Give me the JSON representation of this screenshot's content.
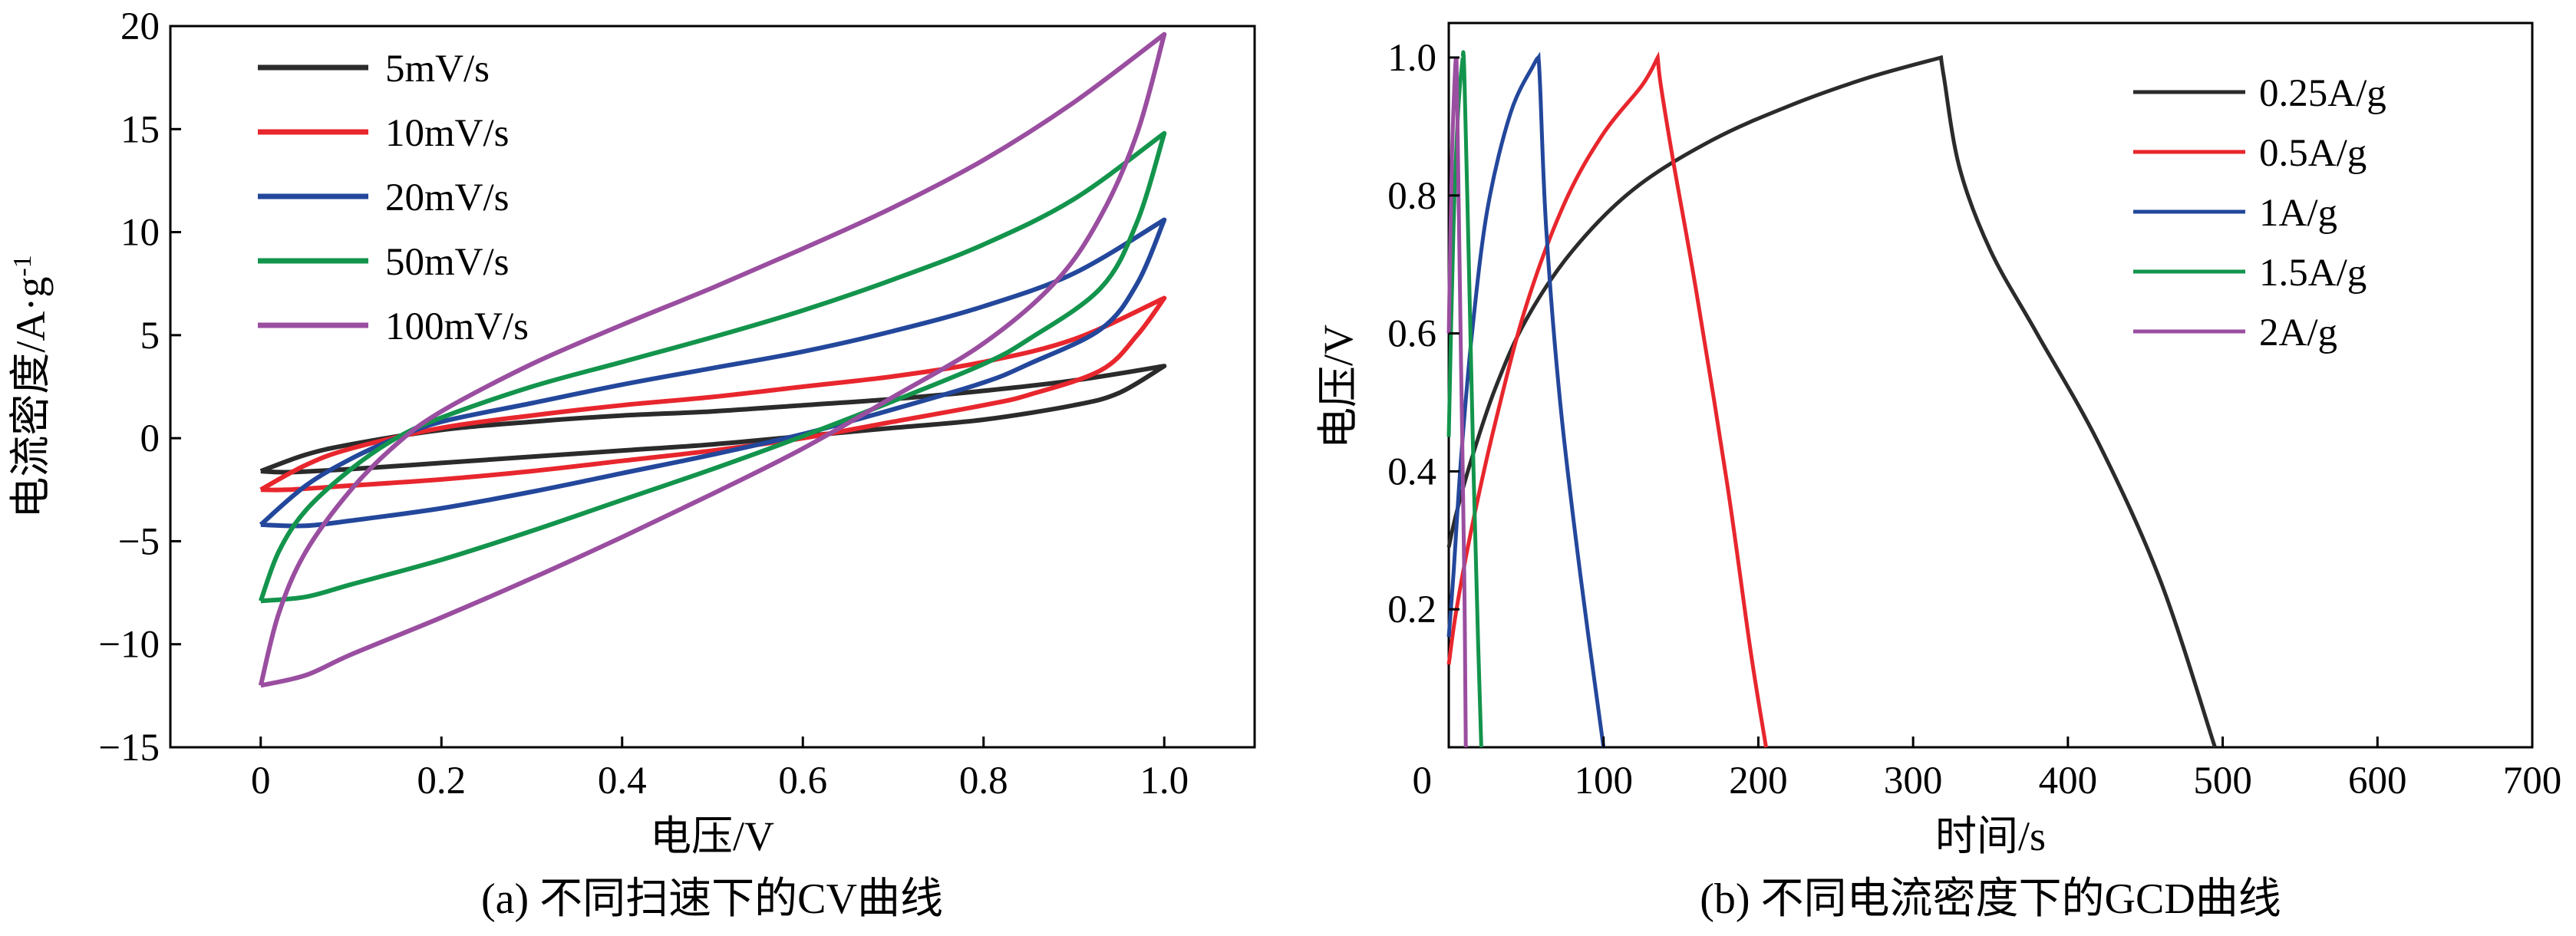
{
  "chart_data": [
    {
      "id": "cv",
      "type": "line",
      "caption": "(a) 不同扫速下的CV曲线",
      "xlabel": "电压/V",
      "ylabel": "电流密度/A·g⁻¹",
      "ylabel_main": "电流密度/A·g",
      "ylabel_sup": "-1",
      "xlim": [
        -0.1,
        1.1
      ],
      "ylim": [
        -15,
        20
      ],
      "xticks": [
        0,
        0.2,
        0.4,
        0.6,
        0.8,
        1.0
      ],
      "xtick_labels": [
        "0",
        "0.2",
        "0.4",
        "0.6",
        "0.8",
        "1.0"
      ],
      "yticks": [
        -15,
        -10,
        -5,
        0,
        5,
        10,
        15,
        20
      ],
      "ytick_labels": [
        "−15",
        "−10",
        "−5",
        "0",
        "5",
        "10",
        "15",
        "20"
      ],
      "legend_position": "top-left",
      "series": [
        {
          "name": "5mV/s",
          "color": "#2b2b2b",
          "upper": [
            [
              0,
              -1.6
            ],
            [
              0.05,
              -0.8
            ],
            [
              0.1,
              -0.3
            ],
            [
              0.2,
              0.4
            ],
            [
              0.3,
              0.8
            ],
            [
              0.4,
              1.1
            ],
            [
              0.5,
              1.3
            ],
            [
              0.6,
              1.6
            ],
            [
              0.7,
              1.9
            ],
            [
              0.8,
              2.3
            ],
            [
              0.9,
              2.8
            ],
            [
              1.0,
              3.5
            ]
          ],
          "lower": [
            [
              1.0,
              3.5
            ],
            [
              0.95,
              2.2
            ],
            [
              0.9,
              1.6
            ],
            [
              0.8,
              0.9
            ],
            [
              0.7,
              0.5
            ],
            [
              0.6,
              0.1
            ],
            [
              0.5,
              -0.3
            ],
            [
              0.4,
              -0.6
            ],
            [
              0.3,
              -0.9
            ],
            [
              0.2,
              -1.2
            ],
            [
              0.1,
              -1.5
            ],
            [
              0.03,
              -1.65
            ],
            [
              0,
              -1.6
            ]
          ]
        },
        {
          "name": "10mV/s",
          "color": "#e8262d",
          "upper": [
            [
              0,
              -2.5
            ],
            [
              0.05,
              -1.3
            ],
            [
              0.1,
              -0.5
            ],
            [
              0.2,
              0.5
            ],
            [
              0.3,
              1.1
            ],
            [
              0.4,
              1.6
            ],
            [
              0.5,
              2.0
            ],
            [
              0.6,
              2.5
            ],
            [
              0.7,
              3.0
            ],
            [
              0.8,
              3.7
            ],
            [
              0.9,
              4.8
            ],
            [
              1.0,
              6.8
            ]
          ],
          "lower": [
            [
              1.0,
              6.8
            ],
            [
              0.97,
              5.0
            ],
            [
              0.93,
              3.3
            ],
            [
              0.85,
              2.1
            ],
            [
              0.8,
              1.6
            ],
            [
              0.7,
              0.8
            ],
            [
              0.6,
              0.0
            ],
            [
              0.5,
              -0.6
            ],
            [
              0.4,
              -1.1
            ],
            [
              0.3,
              -1.6
            ],
            [
              0.2,
              -2.0
            ],
            [
              0.1,
              -2.3
            ],
            [
              0.03,
              -2.5
            ],
            [
              0,
              -2.5
            ]
          ]
        },
        {
          "name": "20mV/s",
          "color": "#23479b",
          "upper": [
            [
              0,
              -4.2
            ],
            [
              0.05,
              -2.3
            ],
            [
              0.1,
              -1.0
            ],
            [
              0.15,
              0.0
            ],
            [
              0.2,
              0.8
            ],
            [
              0.3,
              1.7
            ],
            [
              0.4,
              2.6
            ],
            [
              0.5,
              3.4
            ],
            [
              0.6,
              4.2
            ],
            [
              0.7,
              5.2
            ],
            [
              0.8,
              6.4
            ],
            [
              0.9,
              8.0
            ],
            [
              1.0,
              10.6
            ]
          ],
          "lower": [
            [
              1.0,
              10.6
            ],
            [
              0.97,
              7.5
            ],
            [
              0.93,
              5.3
            ],
            [
              0.85,
              3.6
            ],
            [
              0.8,
              2.7
            ],
            [
              0.7,
              1.4
            ],
            [
              0.6,
              0.2
            ],
            [
              0.5,
              -0.8
            ],
            [
              0.4,
              -1.7
            ],
            [
              0.3,
              -2.6
            ],
            [
              0.2,
              -3.4
            ],
            [
              0.1,
              -4.0
            ],
            [
              0.05,
              -4.25
            ],
            [
              0,
              -4.2
            ]
          ]
        },
        {
          "name": "50mV/s",
          "color": "#13944c",
          "upper": [
            [
              0,
              -7.9
            ],
            [
              0.02,
              -5.5
            ],
            [
              0.05,
              -3.5
            ],
            [
              0.1,
              -1.5
            ],
            [
              0.15,
              0.0
            ],
            [
              0.2,
              1.0
            ],
            [
              0.3,
              2.5
            ],
            [
              0.4,
              3.7
            ],
            [
              0.5,
              4.9
            ],
            [
              0.6,
              6.2
            ],
            [
              0.7,
              7.7
            ],
            [
              0.8,
              9.4
            ],
            [
              0.9,
              11.6
            ],
            [
              1.0,
              14.8
            ]
          ],
          "lower": [
            [
              1.0,
              14.8
            ],
            [
              0.97,
              10.5
            ],
            [
              0.93,
              7.3
            ],
            [
              0.85,
              4.8
            ],
            [
              0.8,
              3.6
            ],
            [
              0.7,
              1.8
            ],
            [
              0.6,
              0.1
            ],
            [
              0.5,
              -1.5
            ],
            [
              0.4,
              -3.0
            ],
            [
              0.3,
              -4.5
            ],
            [
              0.2,
              -5.9
            ],
            [
              0.1,
              -7.1
            ],
            [
              0.05,
              -7.7
            ],
            [
              0,
              -7.9
            ]
          ]
        },
        {
          "name": "100mV/s",
          "color": "#9a4ea0",
          "upper": [
            [
              0,
              -12.0
            ],
            [
              0.02,
              -8.5
            ],
            [
              0.05,
              -5.5
            ],
            [
              0.1,
              -2.5
            ],
            [
              0.15,
              -0.3
            ],
            [
              0.2,
              1.3
            ],
            [
              0.3,
              3.6
            ],
            [
              0.4,
              5.5
            ],
            [
              0.5,
              7.3
            ],
            [
              0.6,
              9.2
            ],
            [
              0.7,
              11.2
            ],
            [
              0.8,
              13.5
            ],
            [
              0.9,
              16.3
            ],
            [
              1.0,
              19.6
            ]
          ],
          "lower": [
            [
              1.0,
              19.6
            ],
            [
              0.97,
              14.8
            ],
            [
              0.93,
              10.8
            ],
            [
              0.88,
              7.6
            ],
            [
              0.8,
              4.6
            ],
            [
              0.7,
              2.0
            ],
            [
              0.6,
              -0.5
            ],
            [
              0.5,
              -2.7
            ],
            [
              0.4,
              -4.8
            ],
            [
              0.3,
              -6.8
            ],
            [
              0.2,
              -8.7
            ],
            [
              0.1,
              -10.5
            ],
            [
              0.05,
              -11.5
            ],
            [
              0,
              -12.0
            ]
          ]
        }
      ]
    },
    {
      "id": "gcd",
      "type": "line",
      "caption": "(b) 不同电流密度下的GCD曲线",
      "xlabel": "时间/s",
      "ylabel": "电压/V",
      "xlim": [
        0,
        700
      ],
      "ylim": [
        0,
        1.05
      ],
      "xticks": [
        0,
        100,
        200,
        300,
        400,
        500,
        600,
        700
      ],
      "xtick_labels": [
        "0",
        "100",
        "200",
        "300",
        "400",
        "500",
        "600",
        "700"
      ],
      "yticks": [
        0.2,
        0.4,
        0.6,
        0.8,
        1.0
      ],
      "ytick_labels": [
        "0.2",
        "0.4",
        "0.6",
        "0.8",
        "1.0"
      ],
      "legend_position": "top-right",
      "series": [
        {
          "name": "0.25A/g",
          "color": "#2b2b2b",
          "points": [
            [
              0,
              0.29
            ],
            [
              5,
              0.34
            ],
            [
              15,
              0.42
            ],
            [
              30,
              0.52
            ],
            [
              50,
              0.62
            ],
            [
              80,
              0.72
            ],
            [
              120,
              0.81
            ],
            [
              170,
              0.88
            ],
            [
              220,
              0.93
            ],
            [
              270,
              0.97
            ],
            [
              318,
              1.0
            ],
            [
              320,
              0.97
            ],
            [
              330,
              0.84
            ],
            [
              350,
              0.72
            ],
            [
              380,
              0.6
            ],
            [
              420,
              0.44
            ],
            [
              460,
              0.24
            ],
            [
              495,
              0.0
            ]
          ]
        },
        {
          "name": "0.5A/g",
          "color": "#e8262d",
          "points": [
            [
              0,
              0.12
            ],
            [
              5,
              0.2
            ],
            [
              15,
              0.32
            ],
            [
              30,
              0.47
            ],
            [
              50,
              0.64
            ],
            [
              75,
              0.79
            ],
            [
              100,
              0.89
            ],
            [
              125,
              0.96
            ],
            [
              135,
              1.0
            ],
            [
              137,
              0.96
            ],
            [
              145,
              0.85
            ],
            [
              160,
              0.66
            ],
            [
              180,
              0.38
            ],
            [
              195,
              0.14
            ],
            [
              205,
              0.0
            ]
          ]
        },
        {
          "name": "1A/g",
          "color": "#23479b",
          "points": [
            [
              0,
              0.16
            ],
            [
              3,
              0.25
            ],
            [
              8,
              0.42
            ],
            [
              15,
              0.6
            ],
            [
              25,
              0.78
            ],
            [
              40,
              0.92
            ],
            [
              55,
              0.99
            ],
            [
              58,
              1.0
            ],
            [
              59,
              0.96
            ],
            [
              63,
              0.75
            ],
            [
              72,
              0.5
            ],
            [
              85,
              0.25
            ],
            [
              100,
              0.0
            ]
          ]
        },
        {
          "name": "1.5A/g",
          "color": "#13944c",
          "points": [
            [
              0,
              0.45
            ],
            [
              3,
              0.75
            ],
            [
              6,
              0.92
            ],
            [
              9,
              1.0
            ],
            [
              10,
              0.98
            ],
            [
              13,
              0.7
            ],
            [
              16,
              0.4
            ],
            [
              19,
              0.15
            ],
            [
              21,
              0.0
            ]
          ]
        },
        {
          "name": "2A/g",
          "color": "#9a4ea0",
          "points": [
            [
              0,
              0.6
            ],
            [
              2,
              0.85
            ],
            [
              4,
              0.98
            ],
            [
              5,
              1.0
            ],
            [
              6,
              0.85
            ],
            [
              8,
              0.55
            ],
            [
              10,
              0.25
            ],
            [
              11,
              0.0
            ]
          ]
        }
      ]
    }
  ]
}
